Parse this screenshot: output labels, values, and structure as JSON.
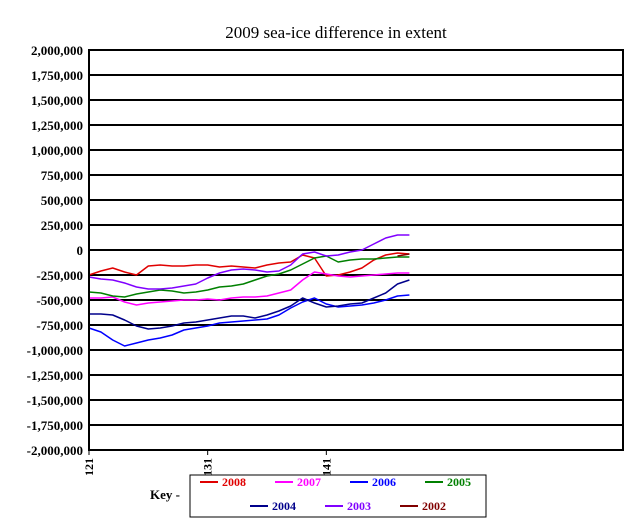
{
  "chart_data": {
    "type": "line",
    "title": "2009 sea-ice difference in extent",
    "xlabel": "",
    "ylabel": "",
    "xlim": [
      121,
      166
    ],
    "ylim": [
      -2000000,
      2000000
    ],
    "y_ticks": [
      "2,000,000",
      "1,750,000",
      "1,500,000",
      "1,250,000",
      "1,000,000",
      "750,000",
      "500,000",
      "250,000",
      "0",
      "-250,000",
      "-500,000",
      "-750,000",
      "-1,000,000",
      "-1,250,000",
      "-1,500,000",
      "-1,750,000",
      "-2,000,000"
    ],
    "x_ticks": [
      "121",
      "131",
      "141"
    ],
    "grid": true,
    "legend_position": "bottom",
    "legend_prefix": "Key -",
    "series": [
      {
        "name": "2008",
        "color": "#e00000",
        "x": [
          121,
          122,
          123,
          124,
          125,
          126,
          127,
          128,
          129,
          130,
          131,
          132,
          133,
          134,
          135,
          136,
          137,
          138,
          139,
          140,
          141,
          142,
          143,
          144,
          145,
          146,
          147,
          148
        ],
        "y": [
          -250000,
          -210000,
          -180000,
          -220000,
          -250000,
          -160000,
          -150000,
          -160000,
          -160000,
          -150000,
          -150000,
          -170000,
          -160000,
          -170000,
          -180000,
          -150000,
          -130000,
          -120000,
          -50000,
          -80000,
          -260000,
          -250000,
          -220000,
          -180000,
          -100000,
          -50000,
          -30000,
          -40000
        ]
      },
      {
        "name": "2007",
        "color": "#ff00ff",
        "x": [
          121,
          122,
          123,
          124,
          125,
          126,
          127,
          128,
          129,
          130,
          131,
          132,
          133,
          134,
          135,
          136,
          137,
          138,
          139,
          140,
          141,
          142,
          143,
          144,
          145,
          146,
          147,
          148
        ],
        "y": [
          -480000,
          -480000,
          -470000,
          -520000,
          -550000,
          -530000,
          -520000,
          -510000,
          -500000,
          -500000,
          -490000,
          -500000,
          -480000,
          -470000,
          -470000,
          -460000,
          -430000,
          -400000,
          -300000,
          -220000,
          -240000,
          -260000,
          -270000,
          -260000,
          -250000,
          -240000,
          -230000,
          -230000
        ]
      },
      {
        "name": "2006",
        "color": "#0000ff",
        "x": [
          121,
          122,
          123,
          124,
          125,
          126,
          127,
          128,
          129,
          130,
          131,
          132,
          133,
          134,
          135,
          136,
          137,
          138,
          139,
          140,
          141,
          142,
          143,
          144,
          145,
          146,
          147,
          148
        ],
        "y": [
          -780000,
          -820000,
          -900000,
          -960000,
          -930000,
          -900000,
          -880000,
          -850000,
          -800000,
          -780000,
          -760000,
          -730000,
          -720000,
          -710000,
          -700000,
          -690000,
          -650000,
          -580000,
          -520000,
          -480000,
          -540000,
          -570000,
          -560000,
          -550000,
          -530000,
          -500000,
          -460000,
          -450000
        ]
      },
      {
        "name": "2005",
        "color": "#008000",
        "x": [
          121,
          122,
          123,
          124,
          125,
          126,
          127,
          128,
          129,
          130,
          131,
          132,
          133,
          134,
          135,
          136,
          137,
          138,
          139,
          140,
          141,
          142,
          143,
          144,
          145,
          146,
          147,
          148
        ],
        "y": [
          -420000,
          -430000,
          -460000,
          -470000,
          -440000,
          -420000,
          -400000,
          -410000,
          -430000,
          -420000,
          -400000,
          -370000,
          -360000,
          -340000,
          -300000,
          -260000,
          -240000,
          -200000,
          -140000,
          -80000,
          -60000,
          -120000,
          -100000,
          -90000,
          -90000,
          -80000,
          -70000,
          -70000
        ]
      },
      {
        "name": "2004",
        "color": "#00008b",
        "x": [
          121,
          122,
          123,
          124,
          125,
          126,
          127,
          128,
          129,
          130,
          131,
          132,
          133,
          134,
          135,
          136,
          137,
          138,
          139,
          140,
          141,
          142,
          143,
          144,
          145,
          146,
          147,
          148
        ],
        "y": [
          -640000,
          -640000,
          -650000,
          -700000,
          -760000,
          -790000,
          -780000,
          -760000,
          -730000,
          -720000,
          -700000,
          -680000,
          -660000,
          -660000,
          -680000,
          -650000,
          -610000,
          -560000,
          -480000,
          -530000,
          -570000,
          -560000,
          -540000,
          -530000,
          -480000,
          -430000,
          -340000,
          -300000
        ]
      },
      {
        "name": "2003",
        "color": "#8000ff",
        "x": [
          121,
          122,
          123,
          124,
          125,
          126,
          127,
          128,
          129,
          130,
          131,
          132,
          133,
          134,
          135,
          136,
          137,
          138,
          139,
          140,
          141,
          142,
          143,
          144,
          145,
          146,
          147,
          148
        ],
        "y": [
          -270000,
          -290000,
          -300000,
          -330000,
          -370000,
          -390000,
          -390000,
          -380000,
          -360000,
          -340000,
          -280000,
          -230000,
          -200000,
          -190000,
          -200000,
          -220000,
          -210000,
          -150000,
          -40000,
          -20000,
          -60000,
          -50000,
          -20000,
          0,
          60000,
          120000,
          150000,
          150000
        ]
      },
      {
        "name": "2002",
        "color": "#800000",
        "x": [
          147,
          148
        ],
        "y": [
          -60000,
          -40000
        ]
      }
    ]
  }
}
